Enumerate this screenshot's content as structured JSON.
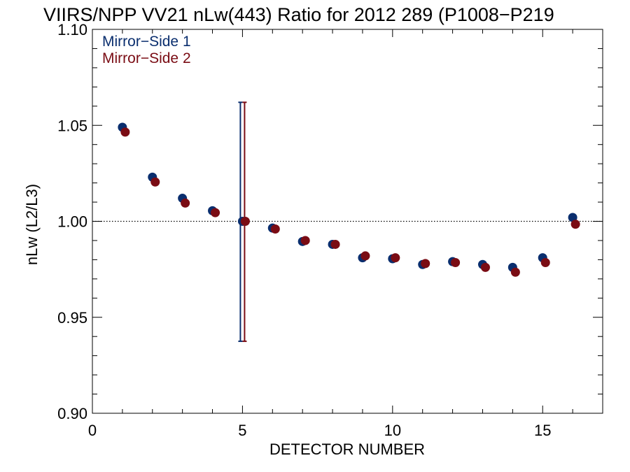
{
  "chart_data": {
    "type": "scatter",
    "title": "VIIRS/NPP VV21 nLw(443) Ratio for 2012 289 (P1008−P219",
    "xlabel": "DETECTOR NUMBER",
    "ylabel": "nLw (L2/L3)",
    "xlim": [
      0,
      17
    ],
    "ylim": [
      0.9,
      1.1
    ],
    "x_ticks": [
      0,
      5,
      10,
      15
    ],
    "x_tick_labels": [
      "0",
      "5",
      "10",
      "15"
    ],
    "y_ticks": [
      0.9,
      0.95,
      1.0,
      1.05,
      1.1
    ],
    "y_tick_labels": [
      "0.90",
      "0.95",
      "1.00",
      "1.05",
      "1.10"
    ],
    "reference_line": 1.0,
    "legend_position": "top-left",
    "series": [
      {
        "name": "Mirror−Side 1",
        "color": "#0a2e6e",
        "x": [
          1,
          2,
          3,
          4,
          5,
          6,
          7,
          8,
          9,
          10,
          11,
          12,
          13,
          14,
          15,
          16
        ],
        "y": [
          1.049,
          1.023,
          1.012,
          1.0055,
          1.0,
          0.9965,
          0.9895,
          0.988,
          0.981,
          0.9805,
          0.9775,
          0.979,
          0.9775,
          0.976,
          0.981,
          1.002
        ],
        "error_bar": {
          "x": 5,
          "low": 0.9375,
          "high": 1.062
        }
      },
      {
        "name": "Mirror−Side 2",
        "color": "#7a0c14",
        "x": [
          1,
          2,
          3,
          4,
          5,
          6,
          7,
          8,
          9,
          10,
          11,
          12,
          13,
          14,
          15,
          16
        ],
        "y": [
          1.0465,
          1.0205,
          1.0095,
          1.0045,
          1.0,
          0.996,
          0.99,
          0.988,
          0.982,
          0.981,
          0.978,
          0.9785,
          0.976,
          0.9735,
          0.9785,
          0.9985
        ],
        "error_bar": {
          "x": 5,
          "low": 0.9375,
          "high": 1.062
        }
      }
    ]
  }
}
